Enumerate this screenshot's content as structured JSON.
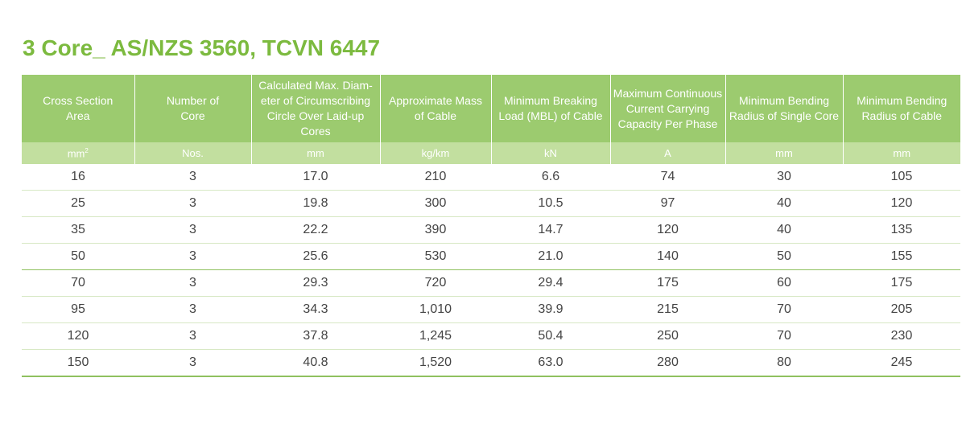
{
  "title": "3 Core_ AS/NZS 3560, TCVN 6447",
  "headers": [
    [
      "Cross Section",
      "Area"
    ],
    [
      "Number of",
      "Core"
    ],
    [
      "Calculated Max. Diam-",
      "eter of Circumscribing",
      "Circle Over Laid-up Cores"
    ],
    [
      "Approximate Mass",
      "of Cable"
    ],
    [
      "Minimum Breaking",
      "Load (MBL) of Cable"
    ],
    [
      "Maximum Continuous",
      "Current Carrying",
      "Capacity Per Phase"
    ],
    [
      "Minimum Bending",
      "Radius of Single Core"
    ],
    [
      "Minimum Bending",
      "Radius of Cable"
    ]
  ],
  "units": [
    "mm",
    "Nos.",
    "mm",
    "kg/km",
    "kN",
    "A",
    "mm",
    "mm"
  ],
  "unit_superscript_first": "2",
  "rows": [
    [
      "16",
      "3",
      "17.0",
      "210",
      "6.6",
      "74",
      "30",
      "105"
    ],
    [
      "25",
      "3",
      "19.8",
      "300",
      "10.5",
      "97",
      "40",
      "120"
    ],
    [
      "35",
      "3",
      "22.2",
      "390",
      "14.7",
      "120",
      "40",
      "135"
    ],
    [
      "50",
      "3",
      "25.6",
      "530",
      "21.0",
      "140",
      "50",
      "155"
    ],
    [
      "70",
      "3",
      "29.3",
      "720",
      "29.4",
      "175",
      "60",
      "175"
    ],
    [
      "95",
      "3",
      "34.3",
      "1,010",
      "39.9",
      "215",
      "70",
      "205"
    ],
    [
      "120",
      "3",
      "37.8",
      "1,245",
      "50.4",
      "250",
      "70",
      "230"
    ],
    [
      "150",
      "3",
      "40.8",
      "1,520",
      "63.0",
      "280",
      "80",
      "245"
    ]
  ],
  "colors": {
    "title": "#7cba3f",
    "header_bg": "#9ccb6f",
    "unit_bg": "#c2df9f",
    "rule": "#8fc15f"
  }
}
